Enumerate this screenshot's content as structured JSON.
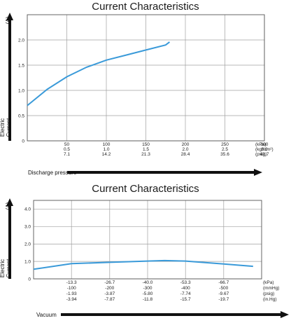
{
  "chart_data": [
    {
      "type": "line",
      "title": "Current  Characteristics",
      "ylabel": "Electric Current",
      "yunit": "(A)",
      "xlabel": "Discharge pressure",
      "ylim": [
        0,
        2.5
      ],
      "xlim": [
        0,
        300
      ],
      "grid": true,
      "y_ticks": [
        "0",
        "0.5",
        "1.0",
        "1.5",
        "2.0"
      ],
      "y_tick_values": [
        0,
        0.5,
        1.0,
        1.5,
        2.0
      ],
      "x_tick_values": [
        50,
        100,
        150,
        200,
        250,
        300
      ],
      "x_tick_rows": [
        {
          "unit": "(kPa)",
          "labels": [
            "50",
            "100",
            "150",
            "200",
            "250",
            "300"
          ]
        },
        {
          "unit": "(kgf/cm²)",
          "labels": [
            "0.5",
            "1.0",
            "1.5",
            "2.0",
            "2.5",
            "3.0"
          ]
        },
        {
          "unit": "(psig)",
          "labels": [
            "7.1",
            "14.2",
            "21.3",
            "28.4",
            "35.6",
            "42.7"
          ]
        }
      ],
      "series": [
        {
          "color": "#3a9ad9",
          "x": [
            0,
            25,
            50,
            75,
            100,
            125,
            150,
            175,
            180
          ],
          "y": [
            0.7,
            1.02,
            1.27,
            1.46,
            1.6,
            1.7,
            1.8,
            1.9,
            1.96
          ]
        }
      ]
    },
    {
      "type": "line",
      "title": "Current Characteristics",
      "ylabel": "Electric Current",
      "yunit": "(A)",
      "xlabel": "Vacuum",
      "ylim": [
        0,
        4.5
      ],
      "xlim": [
        0,
        -80
      ],
      "grid": true,
      "y_ticks": [
        "0",
        "1.0",
        "2.0",
        "3.0",
        "4.0"
      ],
      "y_tick_values": [
        0,
        1.0,
        2.0,
        3.0,
        4.0
      ],
      "x_tick_values": [
        -13.3,
        -26.7,
        -40.0,
        -53.3,
        -66.7
      ],
      "x_tick_rows": [
        {
          "unit": "(kPa)",
          "labels": [
            "-13.3",
            "-26.7",
            "-40.0",
            "-53.3",
            "-66.7"
          ]
        },
        {
          "unit": "(mmHg)",
          "labels": [
            "-100",
            "-200",
            "-300",
            "-400",
            "-500"
          ]
        },
        {
          "unit": "(psig)",
          "labels": [
            "-1.93",
            "-3.87",
            "-5.80",
            "-7.74",
            "-9.67"
          ]
        },
        {
          "unit": "(in.Hg)",
          "labels": [
            "-3.94",
            "-7.87",
            "-11.8",
            "-15.7",
            "-19.7"
          ]
        }
      ],
      "series": [
        {
          "color": "#3a9ad9",
          "x": [
            0,
            -13.3,
            -26.7,
            -40.0,
            -46.0,
            -53.3,
            -66.7,
            -77.0
          ],
          "y": [
            0.55,
            0.87,
            0.95,
            1.02,
            1.05,
            1.02,
            0.85,
            0.72
          ]
        }
      ]
    }
  ]
}
